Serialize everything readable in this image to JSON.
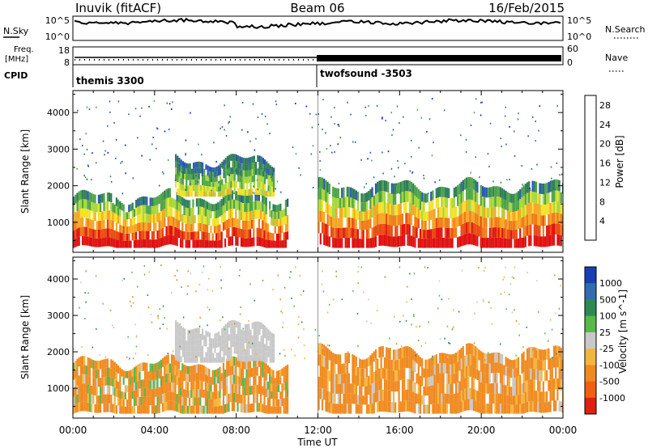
{
  "header": {
    "station": "Inuvik (fitACF)",
    "beam": "Beam 06",
    "date": "16/Feb/2015"
  },
  "noise_panel": {
    "left_label": "N.Sky",
    "right_label": "N.Search",
    "left_ticks": [
      "10^5",
      "10^0"
    ],
    "right_ticks": [
      "10^5",
      "10^0"
    ]
  },
  "freq_panel": {
    "left_label_top": "Freq.",
    "left_label_bottom": "[MHz]",
    "left_ticks": [
      "18",
      "8"
    ],
    "right_label": "Nave",
    "right_ticks": [
      "60",
      "0"
    ]
  },
  "cpid_panel": {
    "label": "CPID",
    "segments": [
      {
        "name": "themis 3300",
        "start_hour": 0
      },
      {
        "name": "twofsound -3503",
        "start_hour": 12
      }
    ]
  },
  "chart_data": [
    {
      "type": "heatmap",
      "title": "Power",
      "ylabel": "Slant Range [km]",
      "xlabel": "",
      "ylim": [
        180,
        4600
      ],
      "yticks": [
        1000,
        2000,
        3000,
        4000
      ],
      "colorbar": {
        "label": "Power [dB]",
        "ticks": [
          "4",
          "8",
          "12",
          "16",
          "20",
          "24",
          "28"
        ],
        "range": [
          0,
          30
        ],
        "colors": [
          "#0b1fd8",
          "#2b56b8",
          "#2f7d5a",
          "#4ea448",
          "#a8d63a",
          "#f2e228",
          "#f5a623",
          "#f07a17",
          "#e84a10",
          "#e01010"
        ]
      },
      "echo_bands": [
        {
          "start_hour": 0.0,
          "end_hour": 10.5,
          "range_km": [
            300,
            1700
          ],
          "power_db": [
            4,
            30
          ]
        },
        {
          "start_hour": 5.0,
          "end_hour": 9.8,
          "range_km": [
            1700,
            2700
          ],
          "power_db": [
            4,
            16
          ]
        },
        {
          "start_hour": 12.0,
          "end_hour": 24.0,
          "range_km": [
            300,
            2000
          ],
          "power_db": [
            4,
            30
          ]
        }
      ]
    },
    {
      "type": "heatmap",
      "title": "Velocity",
      "ylabel": "Slant Range [km]",
      "xlabel": "Time UT",
      "ylim": [
        180,
        4600
      ],
      "yticks": [
        1000,
        2000,
        3000,
        4000
      ],
      "xticks": [
        "00:00",
        "04:00",
        "08:00",
        "12:00",
        "16:00",
        "20:00",
        "00:00"
      ],
      "colorbar": {
        "label": "Velocity [m s^-1]",
        "ticks": [
          "1000",
          "500",
          "100",
          "25",
          "-25",
          "-100",
          "-500",
          "-1000"
        ],
        "colors": [
          "#1a3fb5",
          "#2f6fb0",
          "#2e8a55",
          "#56b94a",
          "#c8c8c8",
          "#f2b640",
          "#f08a20",
          "#f06010",
          "#e02010"
        ]
      },
      "echo_bands": [
        {
          "start_hour": 0.0,
          "end_hour": 10.5,
          "range_km": [
            300,
            1700
          ],
          "velocity_ms": [
            -500,
            100
          ]
        },
        {
          "start_hour": 5.0,
          "end_hour": 9.8,
          "range_km": [
            1700,
            2700
          ],
          "velocity_ms": [
            -25,
            25
          ]
        },
        {
          "start_hour": 12.0,
          "end_hour": 24.0,
          "range_km": [
            300,
            2000
          ],
          "velocity_ms": [
            -500,
            25
          ]
        }
      ]
    }
  ]
}
